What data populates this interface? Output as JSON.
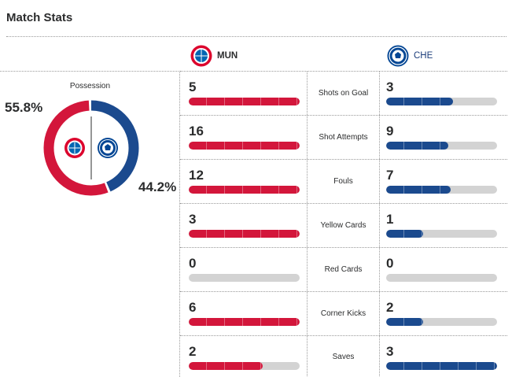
{
  "title": "Match Stats",
  "colors": {
    "home": "#d3163b",
    "away": "#1b4a8e",
    "track": "#d3d3d3"
  },
  "home": {
    "abbr": "MUN",
    "crest": "bayern-crest-icon"
  },
  "away": {
    "abbr": "CHE",
    "crest": "chelsea-crest-icon"
  },
  "possession": {
    "label": "Possession",
    "home_text": "55.8%",
    "away_text": "44.2%",
    "home_pct": 55.8,
    "away_pct": 44.2
  },
  "stats": [
    {
      "label": "Shots on Goal",
      "home": "5",
      "away": "3",
      "home_frac": 1.0,
      "away_frac": 0.6
    },
    {
      "label": "Shot Attempts",
      "home": "16",
      "away": "9",
      "home_frac": 1.0,
      "away_frac": 0.56
    },
    {
      "label": "Fouls",
      "home": "12",
      "away": "7",
      "home_frac": 1.0,
      "away_frac": 0.58
    },
    {
      "label": "Yellow Cards",
      "home": "3",
      "away": "1",
      "home_frac": 1.0,
      "away_frac": 0.33
    },
    {
      "label": "Red Cards",
      "home": "0",
      "away": "0",
      "home_frac": 0,
      "away_frac": 0
    },
    {
      "label": "Corner Kicks",
      "home": "6",
      "away": "2",
      "home_frac": 1.0,
      "away_frac": 0.33
    },
    {
      "label": "Saves",
      "home": "2",
      "away": "3",
      "home_frac": 0.67,
      "away_frac": 1.0
    }
  ]
}
